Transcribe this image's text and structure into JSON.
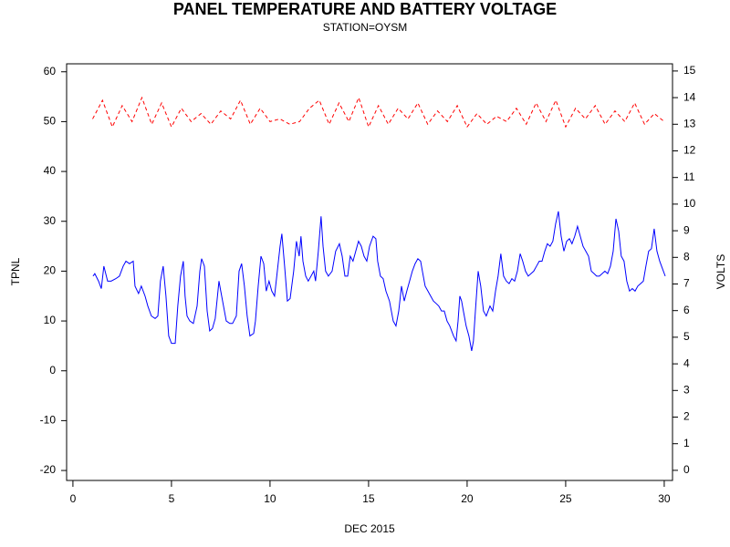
{
  "chart_data": {
    "type": "line",
    "title": "PANEL TEMPERATURE AND BATTERY VOLTAGE",
    "subtitle": "STATION=OYSM",
    "xlabel": "DEC 2015",
    "ylabel": "TPNL",
    "y2label": "VOLTS",
    "xlim": [
      -0.32,
      30.42
    ],
    "xticks": [
      0,
      5,
      10,
      15,
      20,
      25,
      30
    ],
    "ylim": [
      -22,
      61.6
    ],
    "yticks": [
      -20,
      -10,
      0,
      10,
      20,
      30,
      40,
      50,
      60
    ],
    "y2lim": [
      -0.38,
      15.27
    ],
    "y2ticks": [
      0,
      1,
      2,
      3,
      4,
      5,
      6,
      7,
      8,
      9,
      10,
      11,
      12,
      13,
      14,
      15
    ],
    "series": [
      {
        "name": "TPNL",
        "color": "#0000ff",
        "dashed": false,
        "x": [
          1.02,
          1.11,
          1.3,
          1.44,
          1.57,
          1.76,
          1.94,
          2.18,
          2.36,
          2.55,
          2.69,
          2.87,
          3.06,
          3.15,
          3.33,
          3.47,
          3.66,
          3.8,
          3.98,
          4.17,
          4.31,
          4.44,
          4.58,
          4.72,
          4.86,
          5.0,
          5.19,
          5.32,
          5.46,
          5.6,
          5.69,
          5.79,
          5.93,
          6.11,
          6.3,
          6.44,
          6.53,
          6.67,
          6.81,
          6.94,
          7.08,
          7.22,
          7.41,
          7.5,
          7.64,
          7.78,
          7.96,
          8.1,
          8.29,
          8.43,
          8.56,
          8.7,
          8.84,
          8.98,
          9.17,
          9.26,
          9.4,
          9.54,
          9.68,
          9.81,
          9.95,
          10.09,
          10.23,
          10.37,
          10.51,
          10.6,
          10.74,
          10.88,
          11.02,
          11.2,
          11.34,
          11.48,
          11.57,
          11.67,
          11.81,
          11.94,
          12.08,
          12.22,
          12.31,
          12.45,
          12.59,
          12.69,
          12.82,
          12.96,
          13.15,
          13.33,
          13.52,
          13.66,
          13.8,
          13.94,
          14.07,
          14.21,
          14.35,
          14.49,
          14.63,
          14.77,
          14.91,
          15.05,
          15.23,
          15.37,
          15.46,
          15.6,
          15.74,
          15.88,
          16.06,
          16.25,
          16.39,
          16.53,
          16.67,
          16.81,
          16.94,
          17.08,
          17.22,
          17.36,
          17.5,
          17.64,
          17.73,
          17.87,
          18.01,
          18.15,
          18.29,
          18.43,
          18.56,
          18.7,
          18.84,
          18.98,
          19.12,
          19.31,
          19.44,
          19.54,
          19.63,
          19.72,
          19.81,
          19.95,
          20.09,
          20.23,
          20.32,
          20.42,
          20.56,
          20.69,
          20.83,
          20.97,
          21.16,
          21.3,
          21.44,
          21.57,
          21.71,
          21.85,
          21.99,
          22.13,
          22.27,
          22.41,
          22.55,
          22.69,
          22.82,
          22.96,
          23.1,
          23.24,
          23.38,
          23.52,
          23.66,
          23.8,
          23.94,
          24.07,
          24.21,
          24.35,
          24.49,
          24.63,
          24.77,
          24.91,
          25.05,
          25.19,
          25.32,
          25.46,
          25.6,
          25.74,
          25.88,
          26.02,
          26.16,
          26.3,
          26.44,
          26.57,
          26.71,
          26.85,
          26.99,
          27.13,
          27.27,
          27.41,
          27.55,
          27.69,
          27.82,
          27.96,
          28.1,
          28.24,
          28.38,
          28.52,
          28.66,
          28.8,
          28.94,
          29.07,
          29.21,
          29.35,
          29.49,
          29.63,
          29.77,
          29.91,
          30.05
        ],
        "values": [
          19,
          19.5,
          18,
          16.5,
          21,
          18,
          18,
          18.5,
          19,
          21,
          22,
          21.5,
          22,
          17,
          15.5,
          17,
          15,
          13,
          11,
          10.5,
          11,
          18,
          21,
          15,
          7,
          5.5,
          5.5,
          13,
          19,
          22,
          15,
          11,
          10,
          9.5,
          13,
          20,
          22.5,
          21,
          12,
          8,
          8.5,
          10.5,
          18,
          16,
          13,
          10,
          9.5,
          9.5,
          11,
          20,
          21.5,
          17,
          11,
          7,
          7.5,
          10,
          17,
          23,
          21.5,
          16,
          18,
          16,
          15,
          20,
          25,
          27.5,
          21,
          14,
          14.5,
          20,
          26,
          23,
          27,
          22,
          19,
          18,
          19,
          20,
          18,
          24,
          31,
          25,
          20,
          19,
          20,
          24,
          25.5,
          23,
          19,
          19,
          23,
          22,
          24,
          26,
          25,
          23,
          22,
          25,
          27,
          26.5,
          22,
          19,
          18.5,
          16,
          14,
          10,
          9,
          12,
          17,
          14,
          16,
          18,
          20,
          21.5,
          22.5,
          22,
          20,
          17,
          16,
          15,
          14,
          13.5,
          13,
          12,
          12,
          10,
          9,
          7,
          6,
          10,
          15,
          14,
          12,
          9,
          7,
          4,
          6,
          12,
          20,
          17,
          12,
          11,
          13,
          12,
          16,
          19,
          23.5,
          19,
          18,
          17.5,
          18.5,
          18,
          20,
          23.5,
          22,
          20,
          19,
          19.5,
          20,
          21,
          22,
          22,
          24,
          25.5,
          25,
          26,
          29.5,
          32,
          27,
          24,
          26,
          26.5,
          25.5,
          27,
          29,
          27,
          25,
          24,
          23,
          20,
          19.5,
          19,
          19,
          19.5,
          20,
          19.5,
          21,
          24,
          30.5,
          28,
          23,
          22,
          18,
          16,
          16.5,
          16,
          17,
          17.5,
          18,
          21,
          24,
          24.5,
          28.5,
          24,
          22,
          20.5,
          19
        ]
      },
      {
        "name": "VOLTS",
        "color": "#ff0000",
        "dashed": true,
        "axis": "y2",
        "x": [
          1,
          1.5,
          2,
          2.5,
          3,
          3.5,
          4,
          4.5,
          5,
          5.5,
          6,
          6.5,
          7,
          7.5,
          8,
          8.5,
          9,
          9.5,
          10,
          10.5,
          11,
          11.5,
          12,
          12.5,
          13,
          13.5,
          14,
          14.5,
          15,
          15.5,
          16,
          16.5,
          17,
          17.5,
          18,
          18.5,
          19,
          19.5,
          20,
          20.5,
          21,
          21.5,
          22,
          22.5,
          23,
          23.5,
          24,
          24.5,
          25,
          25.5,
          26,
          26.5,
          27,
          27.5,
          28,
          28.5,
          29,
          29.5,
          30
        ],
        "values": [
          13.2,
          13.9,
          12.9,
          13.7,
          13.1,
          14.0,
          13.0,
          13.8,
          12.9,
          13.6,
          13.1,
          13.4,
          13.0,
          13.5,
          13.2,
          13.9,
          13.0,
          13.6,
          13.1,
          13.2,
          13.0,
          13.1,
          13.6,
          13.9,
          13.0,
          13.8,
          13.1,
          14.0,
          12.9,
          13.7,
          13.0,
          13.6,
          13.2,
          13.8,
          13.0,
          13.5,
          13.1,
          13.7,
          12.9,
          13.4,
          13.0,
          13.3,
          13.1,
          13.6,
          13.0,
          13.8,
          13.1,
          13.9,
          12.9,
          13.6,
          13.2,
          13.7,
          13.0,
          13.5,
          13.1,
          13.8,
          13.0,
          13.4,
          13.1
        ]
      }
    ]
  }
}
